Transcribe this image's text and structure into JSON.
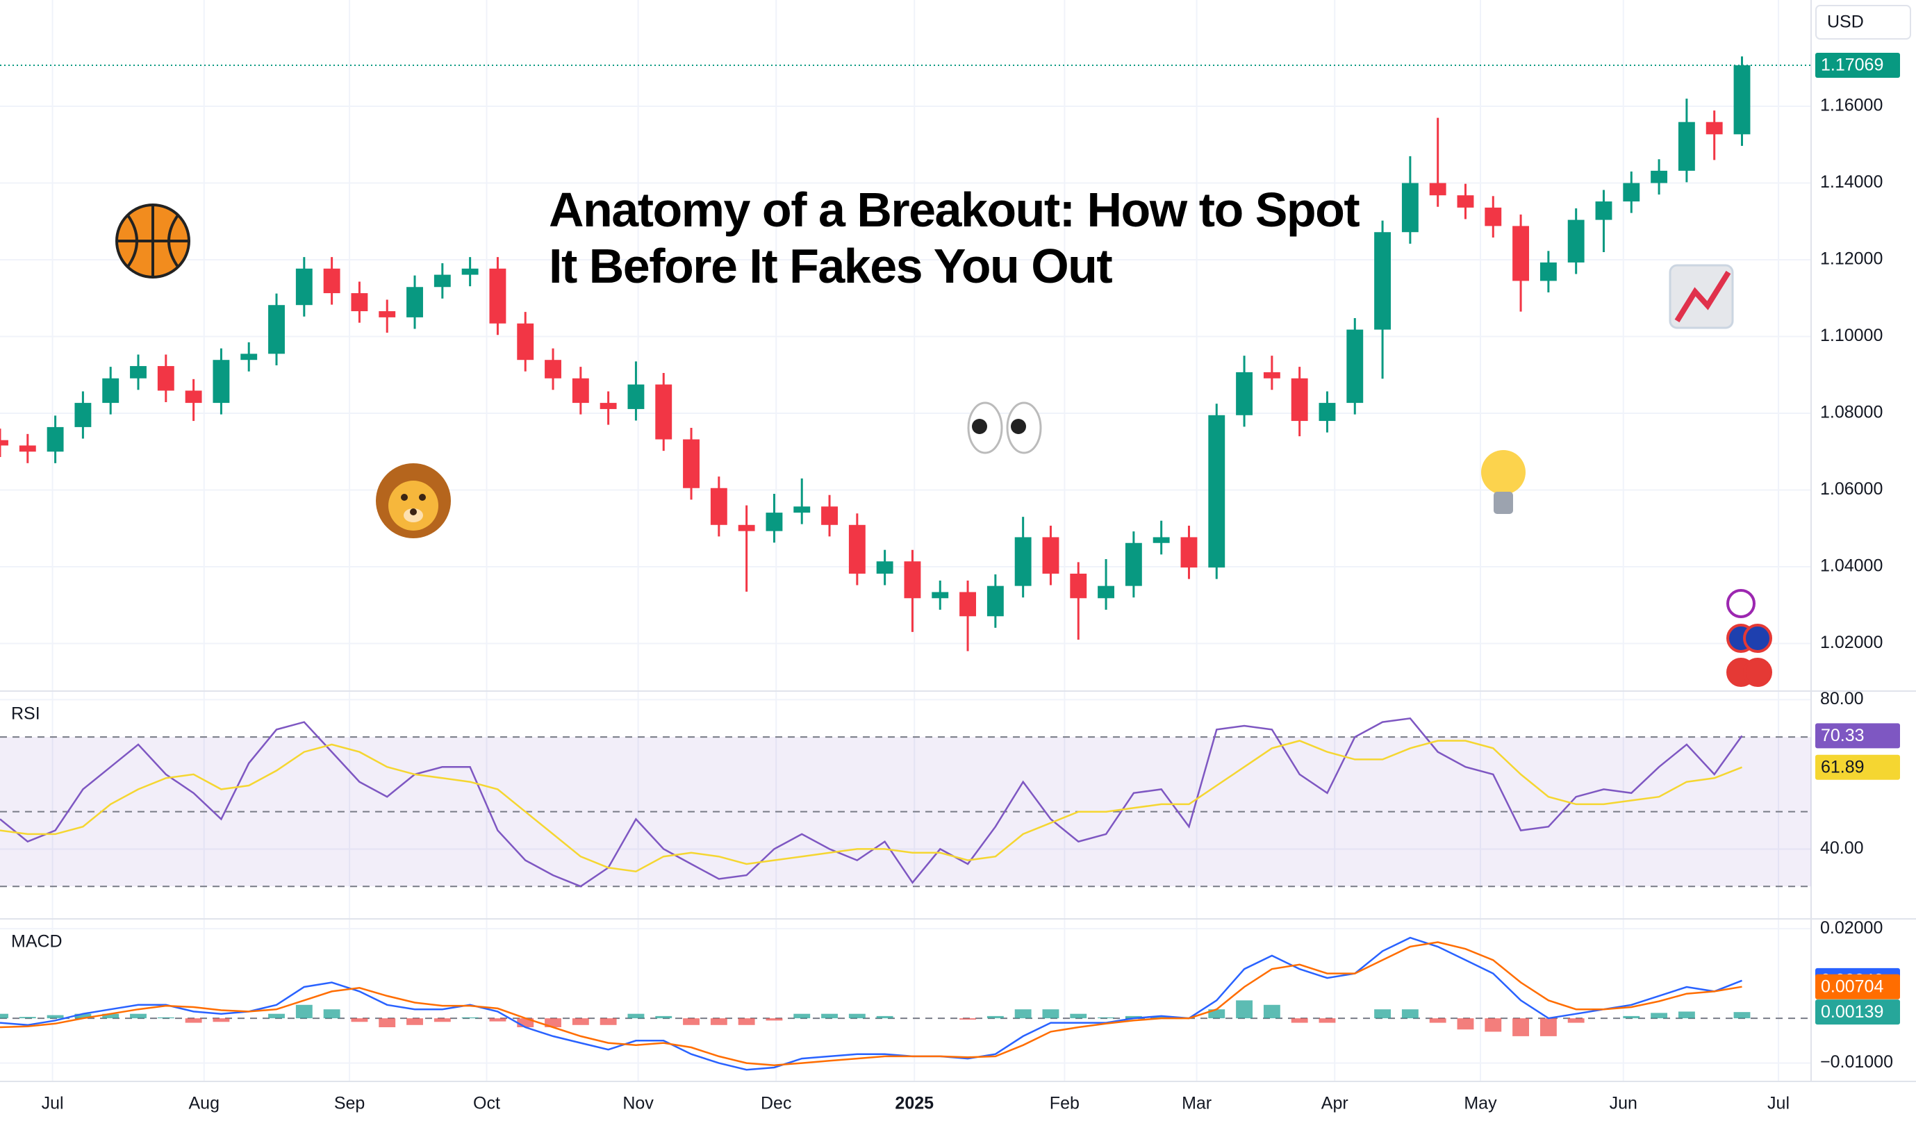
{
  "chart_data": [
    {
      "type": "candlestick",
      "title": "Anatomy of a Breakout: How to Spot It Before It Fakes You Out",
      "currency": "USD",
      "up_color": "#089981",
      "down_color": "#f23645",
      "open": [
        1.073,
        1.0716,
        1.07,
        1.0764,
        1.0827,
        1.0891,
        1.0923,
        1.0859,
        1.0827,
        1.0939,
        1.0955,
        1.1082,
        1.1177,
        1.1113,
        1.1066,
        1.105,
        1.1129,
        1.1161,
        1.1177,
        1.1034,
        1.0939,
        1.0891,
        1.0827,
        1.0811,
        1.0875,
        1.0732,
        1.0605,
        1.0509,
        1.0493,
        1.0541,
        1.0557,
        1.0509,
        1.0382,
        1.0414,
        1.0318,
        1.0334,
        1.0271,
        1.035,
        1.0477,
        1.0382,
        1.0318,
        1.035,
        1.0462,
        1.0477,
        1.0398,
        1.0795,
        1.0907,
        1.0891,
        1.078,
        1.0827,
        1.1018,
        1.1272,
        1.14,
        1.1368,
        1.1336,
        1.1288,
        1.1145,
        1.1193,
        1.1304,
        1.1352,
        1.14,
        1.1432,
        1.1559,
        1.1527
      ],
      "high": [
        1.076,
        1.0746,
        1.0794,
        1.0857,
        1.0921,
        1.0953,
        1.0953,
        1.0889,
        1.0969,
        1.0985,
        1.1112,
        1.1207,
        1.1207,
        1.1143,
        1.1096,
        1.1159,
        1.1191,
        1.1207,
        1.1207,
        1.1064,
        1.0969,
        1.0921,
        1.0857,
        1.0935,
        1.0905,
        1.0762,
        1.0635,
        1.056,
        1.059,
        1.063,
        1.0587,
        1.0539,
        1.0444,
        1.0444,
        1.0364,
        1.0364,
        1.038,
        1.053,
        1.0507,
        1.0412,
        1.042,
        1.0492,
        1.052,
        1.0507,
        1.0825,
        1.095,
        1.095,
        1.0921,
        1.0857,
        1.1048,
        1.1302,
        1.147,
        1.157,
        1.1398,
        1.1366,
        1.1318,
        1.1223,
        1.1334,
        1.1382,
        1.143,
        1.1462,
        1.162,
        1.1589,
        1.173
      ],
      "low": [
        1.0686,
        1.067,
        1.067,
        1.0734,
        1.0797,
        1.0861,
        1.0829,
        1.078,
        1.0797,
        1.0909,
        1.0925,
        1.1052,
        1.1083,
        1.1036,
        1.101,
        1.102,
        1.1099,
        1.1131,
        1.1004,
        1.0909,
        1.0861,
        1.0797,
        1.077,
        1.0781,
        1.0702,
        1.0575,
        1.0479,
        1.0335,
        1.0463,
        1.0511,
        1.0479,
        1.0352,
        1.0352,
        1.023,
        1.0288,
        1.018,
        1.0241,
        1.032,
        1.0352,
        1.021,
        1.0288,
        1.032,
        1.0432,
        1.0368,
        1.0368,
        1.0765,
        1.0861,
        1.074,
        1.075,
        1.0797,
        1.089,
        1.1242,
        1.1338,
        1.1306,
        1.1258,
        1.1065,
        1.1115,
        1.1163,
        1.122,
        1.1322,
        1.137,
        1.1402,
        1.146,
        1.1497
      ],
      "close": [
        1.0716,
        1.07,
        1.0764,
        1.0827,
        1.0891,
        1.0923,
        1.0859,
        1.0827,
        1.0939,
        1.0955,
        1.1082,
        1.1177,
        1.1113,
        1.1066,
        1.105,
        1.1129,
        1.1161,
        1.1177,
        1.1034,
        1.0939,
        1.0891,
        1.0827,
        1.0811,
        1.0875,
        1.0732,
        1.0605,
        1.0509,
        1.0493,
        1.0541,
        1.0557,
        1.0509,
        1.0382,
        1.0414,
        1.0318,
        1.0334,
        1.0271,
        1.035,
        1.0477,
        1.0382,
        1.0318,
        1.035,
        1.0462,
        1.0477,
        1.0398,
        1.0795,
        1.0907,
        1.0891,
        1.078,
        1.0827,
        1.1018,
        1.1272,
        1.14,
        1.1368,
        1.1336,
        1.1288,
        1.1145,
        1.1193,
        1.1304,
        1.1352,
        1.14,
        1.1432,
        1.1559,
        1.1527,
        1.17069
      ],
      "ylim": [
        1.0076,
        1.1877
      ],
      "yticks": [
        {
          "value": 1.02,
          "label": "1.02000"
        },
        {
          "value": 1.04,
          "label": "1.04000"
        },
        {
          "value": 1.06,
          "label": "1.06000"
        },
        {
          "value": 1.08,
          "label": "1.08000"
        },
        {
          "value": 1.1,
          "label": "1.10000"
        },
        {
          "value": 1.12,
          "label": "1.12000"
        },
        {
          "value": 1.14,
          "label": "1.14000"
        },
        {
          "value": 1.16,
          "label": "1.16000"
        }
      ],
      "xlim": [
        0,
        65.5
      ],
      "xticks": [
        {
          "value": 1.9,
          "label": "Jul"
        },
        {
          "value": 7.38,
          "label": "Aug"
        },
        {
          "value": 12.64,
          "label": "Sep"
        },
        {
          "value": 17.6,
          "label": "Oct"
        },
        {
          "value": 23.08,
          "label": "Nov"
        },
        {
          "value": 28.07,
          "label": "Dec"
        },
        {
          "value": 33.07,
          "label": "2025"
        },
        {
          "value": 38.5,
          "label": "Feb"
        },
        {
          "value": 43.28,
          "label": "Mar"
        },
        {
          "value": 48.27,
          "label": "Apr"
        },
        {
          "value": 53.54,
          "label": "May"
        },
        {
          "value": 58.71,
          "label": "Jun"
        },
        {
          "value": 64.32,
          "label": "Jul"
        }
      ],
      "grid": true
    },
    {
      "type": "line",
      "label": "RSI",
      "band_color": "#7e57c2",
      "levels": [
        70,
        50,
        30
      ],
      "series": [
        {
          "color": "#7e57c2",
          "values": [
            48,
            42,
            45,
            56,
            62,
            68,
            60,
            55,
            48,
            63,
            72,
            74,
            66,
            58,
            54,
            60,
            62,
            62,
            45,
            37,
            33,
            30,
            35,
            48,
            40,
            36,
            32,
            33,
            40,
            44,
            40,
            37,
            42,
            31,
            40,
            36,
            46,
            58,
            48,
            42,
            44,
            55,
            56,
            46,
            72,
            73,
            72,
            60,
            55,
            70,
            74,
            75,
            66,
            62,
            60,
            45,
            46,
            54,
            56,
            55,
            62,
            68,
            60,
            70.33
          ]
        },
        {
          "color": "#f5d631",
          "values": [
            45,
            44,
            44,
            46,
            52,
            56,
            59,
            60,
            56,
            57,
            61,
            66,
            68,
            66,
            62,
            60,
            59,
            58,
            56,
            50,
            44,
            38,
            35,
            34,
            38,
            39,
            38,
            36,
            37,
            38,
            39,
            40,
            40,
            39,
            39,
            37,
            38,
            44,
            47,
            50,
            50,
            51,
            52,
            52,
            57,
            62,
            67,
            69,
            66,
            64,
            64,
            67,
            69,
            69,
            67,
            60,
            54,
            52,
            52,
            53,
            54,
            58,
            59,
            61.89
          ]
        }
      ],
      "ylim": [
        21.3,
        82.3
      ],
      "yticks": [
        {
          "value": 80,
          "label": "80.00"
        },
        {
          "value": 40,
          "label": "40.00"
        }
      ],
      "grid": true
    },
    {
      "type": "macd",
      "label": "MACD",
      "levels": [
        0
      ],
      "series": [
        {
          "color": "#2962ff",
          "values": [
            -0.001,
            -0.0015,
            -0.0005,
            0.001,
            0.002,
            0.003,
            0.003,
            0.0015,
            0.001,
            0.0015,
            0.003,
            0.007,
            0.008,
            0.006,
            0.003,
            0.002,
            0.002,
            0.003,
            0.0015,
            -0.002,
            -0.004,
            -0.0055,
            -0.007,
            -0.005,
            -0.005,
            -0.008,
            -0.01,
            -0.0115,
            -0.011,
            -0.009,
            -0.0085,
            -0.008,
            -0.008,
            -0.0085,
            -0.0085,
            -0.009,
            -0.008,
            -0.004,
            -0.001,
            -0.001,
            -0.001,
            0,
            0.0005,
            0,
            0.004,
            0.011,
            0.014,
            0.011,
            0.009,
            0.01,
            0.015,
            0.018,
            0.016,
            0.013,
            0.01,
            0.004,
            0,
            0.001,
            0.002,
            0.003,
            0.005,
            0.007,
            0.006,
            0.00842
          ]
        },
        {
          "color": "#ff6d00",
          "values": [
            -0.002,
            -0.0018,
            -0.0012,
            0,
            0.001,
            0.002,
            0.0028,
            0.0025,
            0.0018,
            0.0015,
            0.002,
            0.004,
            0.006,
            0.0068,
            0.005,
            0.0035,
            0.0028,
            0.0028,
            0.0022,
            0,
            -0.002,
            -0.004,
            -0.0055,
            -0.006,
            -0.0055,
            -0.0065,
            -0.0085,
            -0.01,
            -0.0105,
            -0.01,
            -0.0095,
            -0.009,
            -0.0085,
            -0.0085,
            -0.0085,
            -0.0087,
            -0.0085,
            -0.006,
            -0.003,
            -0.002,
            -0.0012,
            -0.0005,
            0,
            0,
            0.002,
            0.007,
            0.011,
            0.012,
            0.01,
            0.01,
            0.013,
            0.016,
            0.017,
            0.0155,
            0.013,
            0.008,
            0.004,
            0.002,
            0.002,
            0.0025,
            0.0038,
            0.0055,
            0.006,
            0.00704
          ]
        }
      ],
      "histogram": {
        "up_color": "#26a69a",
        "down_color": "#ef5350",
        "values": [
          0.001,
          0.0003,
          0.0007,
          0.001,
          0.001,
          0.001,
          0.0002,
          -0.001,
          -0.0008,
          0,
          0.001,
          0.003,
          0.002,
          -0.0008,
          -0.002,
          -0.0015,
          -0.0008,
          0.0002,
          -0.0007,
          -0.002,
          -0.002,
          -0.0015,
          -0.0015,
          0.001,
          0.0005,
          -0.0015,
          -0.0015,
          -0.0015,
          -0.0005,
          0.001,
          0.001,
          0.001,
          0.0005,
          0,
          0,
          -0.0003,
          0.0005,
          0.002,
          0.002,
          0.001,
          0.0002,
          0.0005,
          0.0005,
          0,
          0.002,
          0.004,
          0.003,
          -0.001,
          -0.001,
          0,
          0.002,
          0.002,
          -0.001,
          -0.0025,
          -0.003,
          -0.004,
          -0.004,
          -0.001,
          0,
          0.0005,
          0.0012,
          0.0015,
          0,
          0.00139
        ]
      },
      "ylim": [
        -0.0141,
        0.0222
      ],
      "yticks": [
        {
          "value": 0.02,
          "label": "0.02000"
        },
        {
          "value": -0.01,
          "label": "−0.01000"
        }
      ],
      "grid": true
    }
  ]
}
